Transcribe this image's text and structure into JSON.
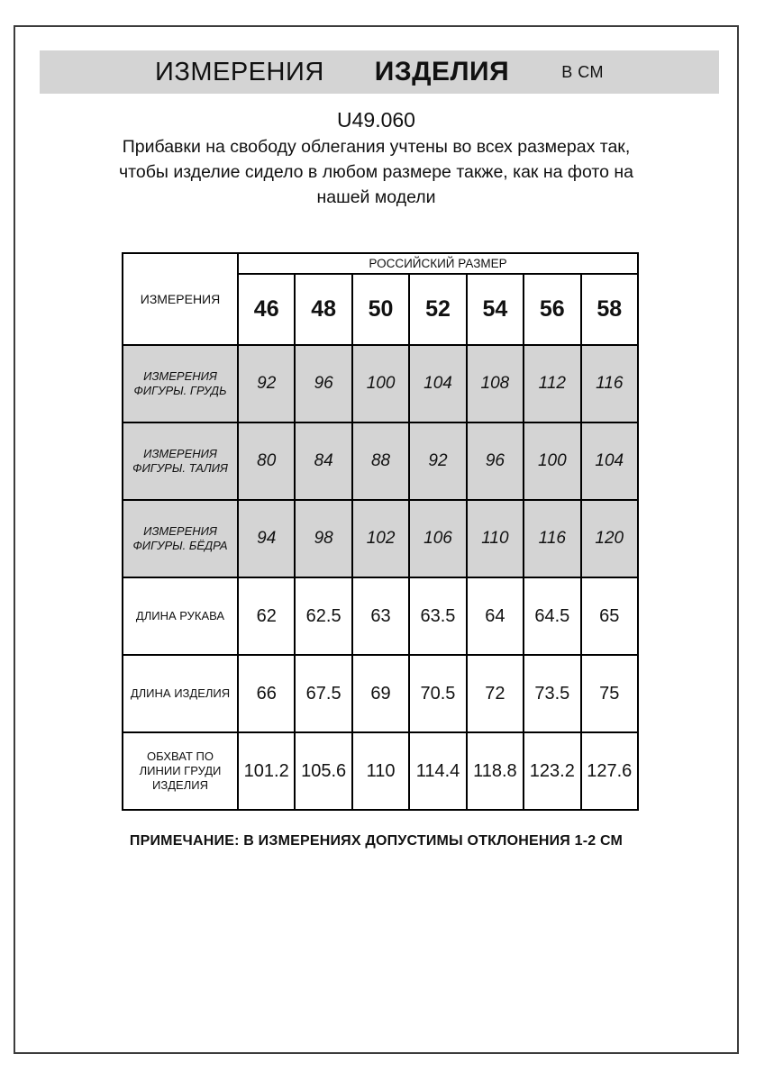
{
  "header": {
    "title_word1": "ИЗМЕРЕНИЯ",
    "title_word2": "ИЗДЕЛИЯ",
    "title_unit": "В СМ"
  },
  "product": {
    "code": "U49.060",
    "description": "Прибавки на свободу облегания учтены во всех размерах так,\nчтобы изделие сидело в любом размере также, как на фото на\nнашей модели"
  },
  "size_table": {
    "corner_label": "ИЗМЕРЕНИЯ",
    "group_header": "РОССИЙСКИЙ РАЗМЕР",
    "sizes": [
      "46",
      "48",
      "50",
      "52",
      "54",
      "56",
      "58"
    ],
    "rows": [
      {
        "label": "ИЗМЕРЕНИЯ\nФИГУРЫ. ГРУДЬ",
        "shaded": true,
        "values": [
          "92",
          "96",
          "100",
          "104",
          "108",
          "112",
          "116"
        ]
      },
      {
        "label": "ИЗМЕРЕНИЯ\nФИГУРЫ. ТАЛИЯ",
        "shaded": true,
        "values": [
          "80",
          "84",
          "88",
          "92",
          "96",
          "100",
          "104"
        ]
      },
      {
        "label": "ИЗМЕРЕНИЯ\nФИГУРЫ. БЁДРА",
        "shaded": true,
        "values": [
          "94",
          "98",
          "102",
          "106",
          "110",
          "116",
          "120"
        ]
      },
      {
        "label": "ДЛИНА РУКАВА",
        "shaded": false,
        "values": [
          "62",
          "62.5",
          "63",
          "63.5",
          "64",
          "64.5",
          "65"
        ]
      },
      {
        "label": "ДЛИНА ИЗДЕЛИЯ",
        "shaded": false,
        "values": [
          "66",
          "67.5",
          "69",
          "70.5",
          "72",
          "73.5",
          "75"
        ]
      },
      {
        "label": "ОБХВАТ ПО\nЛИНИИ ГРУДИ\nИЗДЕЛИЯ",
        "shaded": false,
        "values": [
          "101.2",
          "105.6",
          "110",
          "114.4",
          "118.8",
          "123.2",
          "127.6"
        ]
      }
    ]
  },
  "note": "ПРИМЕЧАНИЕ: В ИЗМЕРЕНИЯХ ДОПУСТИМЫ ОТКЛОНЕНИЯ 1-2 СМ",
  "colors": {
    "band_bg": "#d4d4d4",
    "shaded_row_bg": "#d4d4d4",
    "table_border": "#000000",
    "frame_border": "#3c3c3c",
    "text": "#111111"
  }
}
